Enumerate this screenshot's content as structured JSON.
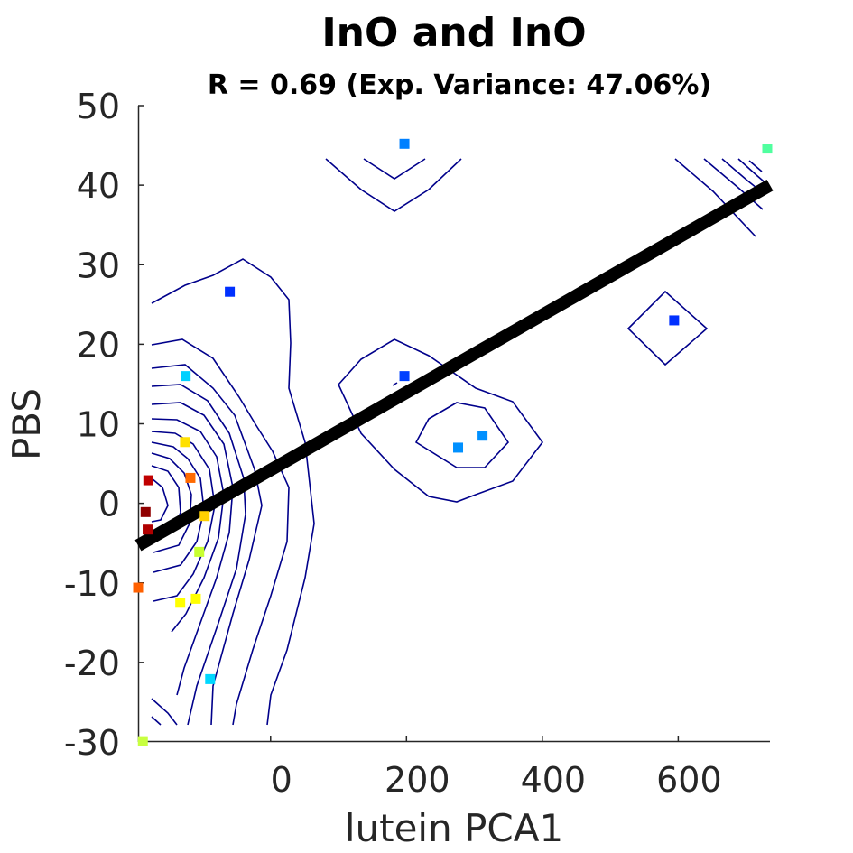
{
  "chart_data": {
    "type": "scatter",
    "title": "InO and InO",
    "subtitle": "R = 0.69 (Exp. Variance: 47.06%)",
    "xlabel": "lutein PCA1",
    "ylabel": "PBS",
    "xlim": [
      -195,
      735
    ],
    "ylim": [
      -30,
      50
    ],
    "xticks": [
      0,
      200,
      400,
      600
    ],
    "xtick_labels": [
      "0",
      "200",
      "400",
      "600"
    ],
    "yticks": [
      50,
      40,
      30,
      20,
      10,
      0,
      -10,
      -20,
      -30
    ],
    "ytick_labels": [
      "50",
      "40",
      "30",
      "20",
      "10",
      "0",
      "-10",
      "-20",
      "-30"
    ],
    "grid": false,
    "legend": "none",
    "regression_line": {
      "x": [
        -195,
        735
      ],
      "y": [
        -5.3,
        40.0
      ],
      "color": "#000000"
    },
    "points": [
      {
        "x": 197,
        "y": 45.2,
        "color": "#0080ff"
      },
      {
        "x": 731,
        "y": 44.6,
        "color": "#50ff9f"
      },
      {
        "x": -60,
        "y": 26.6,
        "color": "#0030ff"
      },
      {
        "x": 594,
        "y": 23.0,
        "color": "#0030ff"
      },
      {
        "x": 197,
        "y": 16.0,
        "color": "#0040ff"
      },
      {
        "x": -125,
        "y": 16.0,
        "color": "#00d0ff"
      },
      {
        "x": 312,
        "y": 8.5,
        "color": "#0090ff"
      },
      {
        "x": 276,
        "y": 7.0,
        "color": "#0090ff"
      },
      {
        "x": -126,
        "y": 7.7,
        "color": "#ffe000"
      },
      {
        "x": -118,
        "y": 3.2,
        "color": "#ff6a00"
      },
      {
        "x": -180,
        "y": 2.9,
        "color": "#c00000"
      },
      {
        "x": -184,
        "y": -1.1,
        "color": "#900000"
      },
      {
        "x": -181,
        "y": -3.3,
        "color": "#b00000"
      },
      {
        "x": -97,
        "y": -1.6,
        "color": "#ffd000"
      },
      {
        "x": -105,
        "y": -6.1,
        "color": "#c8ff30"
      },
      {
        "x": -195,
        "y": -10.6,
        "color": "#ff6000"
      },
      {
        "x": -133,
        "y": -12.5,
        "color": "#ffff00"
      },
      {
        "x": -110,
        "y": -12.0,
        "color": "#ffff00"
      },
      {
        "x": -89,
        "y": -22.1,
        "color": "#00d8ff"
      },
      {
        "x": -188,
        "y": -29.9,
        "color": "#c8ff40"
      }
    ]
  }
}
